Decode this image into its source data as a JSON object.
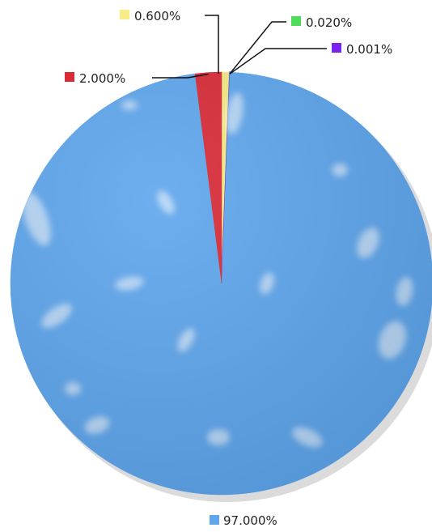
{
  "chart_data": {
    "type": "pie",
    "title": "",
    "start_angle_deg": 90,
    "direction": "clockwise",
    "series": [
      {
        "value": 0.6,
        "label": "0.600%",
        "color": "#f7ec86",
        "legend_position": "top"
      },
      {
        "value": 0.02,
        "label": "0.020%",
        "color": "#4fdc5a",
        "legend_position": "top-right"
      },
      {
        "value": 0.001,
        "label": "0.001%",
        "color": "#7a22f0",
        "legend_position": "top-right"
      },
      {
        "value": 97.0,
        "label": "97.000%",
        "color": "#5ea6ee",
        "legend_position": "bottom"
      },
      {
        "value": 2.0,
        "label": "2.000%",
        "color": "#da2a36",
        "legend_position": "top-left"
      }
    ]
  }
}
